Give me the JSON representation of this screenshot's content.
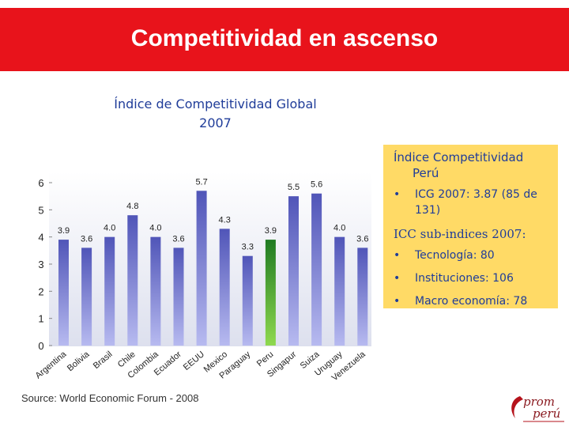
{
  "header": {
    "title": "Competitividad en ascenso"
  },
  "chart_title": {
    "line1": "Índice de Competitividad Global",
    "line2": "2007"
  },
  "chart_data": {
    "type": "bar",
    "categories": [
      "Argentina",
      "Bolivia",
      "Brasil",
      "Chile",
      "Colombia",
      "Ecuador",
      "EEUU",
      "Mexico",
      "Paraguay",
      "Peru",
      "Singapur",
      "Suiza",
      "Uruguay",
      "Venezuela"
    ],
    "values": [
      3.9,
      3.6,
      4.0,
      4.8,
      4.0,
      3.6,
      5.7,
      4.3,
      3.3,
      3.9,
      5.5,
      5.6,
      4.0,
      3.6
    ],
    "value_labels": [
      "3.9",
      "3.6",
      "4.0",
      "4.8",
      "4.0",
      "3.6",
      "5.7",
      "4.3",
      "3.3",
      "3.9",
      "5.5",
      "5.6",
      "4.0",
      "3.6"
    ],
    "title": "Índice de Competitividad Global 2007",
    "xlabel": "",
    "ylabel": "",
    "ylim": [
      0,
      6
    ],
    "yticks": [
      "0",
      "1",
      "2",
      "3",
      "4",
      "5",
      "6"
    ],
    "grid": false,
    "highlight_category": "Peru",
    "colors": {
      "bar": "#8c90e0",
      "bar_dark": "#5055b8",
      "highlight": "#39a83a",
      "highlight_dark": "#1f7a22"
    }
  },
  "panel": {
    "title_line1": "Índice Competitividad",
    "title_line2": "Perú",
    "bullet_symbol": "•",
    "icg": "ICG 2007: 3.87 (85 de 131)",
    "subhead": "ICC sub-indices 2007:",
    "items": [
      "Tecnología: 80",
      "Instituciones: 106",
      "Macro economía: 78"
    ]
  },
  "source": "Source: World Economic Forum - 2008",
  "logo": {
    "line1": "prom",
    "line2": "perú"
  },
  "colors": {
    "banner": "#e8131b",
    "panel_bg": "#ffda66",
    "title_blue": "#1f3c99"
  }
}
